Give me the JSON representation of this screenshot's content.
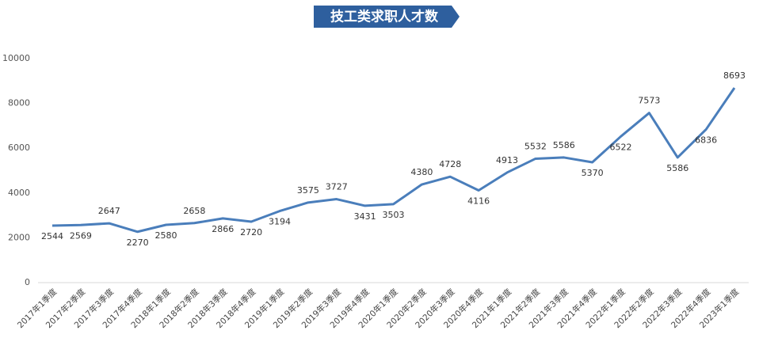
{
  "chart_data": {
    "type": "line",
    "title": "技工类求职人才数",
    "categories": [
      "2017年1季度",
      "2017年2季度",
      "2017年3季度",
      "2017年4季度",
      "2018年1季度",
      "2018年2季度",
      "2018年3季度",
      "2018年4季度",
      "2019年1季度",
      "2019年2季度",
      "2019年3季度",
      "2019年4季度",
      "2020年1季度",
      "2020年2季度",
      "2020年3季度",
      "2020年4季度",
      "2021年1季度",
      "2021年2季度",
      "2021年3季度",
      "2021年4季度",
      "2022年1季度",
      "2022年2季度",
      "2022年3季度",
      "2022年4季度",
      "2023年1季度"
    ],
    "values": [
      2544,
      2569,
      2647,
      2270,
      2580,
      2658,
      2866,
      2720,
      3194,
      3575,
      3727,
      3431,
      3503,
      4380,
      4728,
      4116,
      4913,
      5532,
      5586,
      5370,
      6522,
      7573,
      5586,
      6836,
      8693
    ],
    "color": "#4a7ebb",
    "ylim": [
      0,
      10000
    ],
    "yticks": [
      0,
      2000,
      4000,
      6000,
      8000,
      10000
    ],
    "grid": false
  }
}
